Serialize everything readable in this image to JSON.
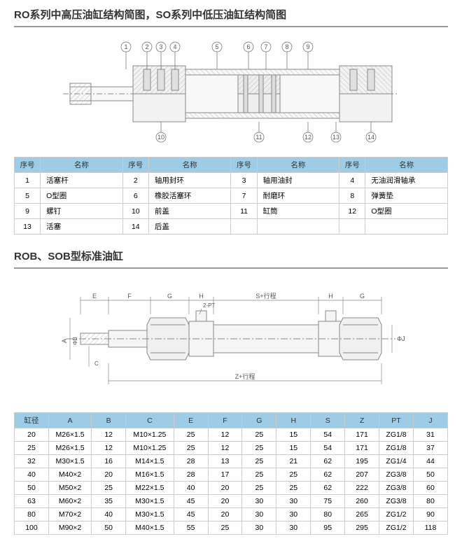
{
  "section1": {
    "title": "RO系列中高压油缸结构简图，SO系列中低压油缸结构简图",
    "callouts": [
      1,
      2,
      3,
      4,
      5,
      6,
      7,
      8,
      9,
      10,
      11,
      12,
      13,
      14
    ],
    "table": {
      "headers": [
        "序号",
        "名称",
        "序号",
        "名称",
        "序号",
        "名称",
        "序号",
        "名称"
      ],
      "rows": [
        [
          "1",
          "活塞杆",
          "2",
          "轴用封环",
          "3",
          "轴用油封",
          "4",
          "无油润滑轴承"
        ],
        [
          "5",
          "O型圈",
          "6",
          "橡胶活塞环",
          "7",
          "耐磨环",
          "8",
          "弹簧垫"
        ],
        [
          "9",
          "螺钉",
          "10",
          "前盖",
          "11",
          "缸筒",
          "12",
          "O型圈"
        ],
        [
          "13",
          "活塞",
          "14",
          "后盖",
          "",
          "",
          "",
          ""
        ]
      ]
    }
  },
  "section2": {
    "title": "ROB、SOB型标准油缸",
    "dims": {
      "top": [
        "E",
        "F",
        "G",
        "H",
        "S+行程",
        "H",
        "G"
      ],
      "left": [
        "A",
        "ΦB",
        "C"
      ],
      "right": "ΦJ",
      "bottom": "Z+行程",
      "port": "2-PT",
      "m_text": "M"
    },
    "table": {
      "headers": [
        "缸径",
        "A",
        "B",
        "C",
        "E",
        "F",
        "G",
        "H",
        "S",
        "Z",
        "PT",
        "J"
      ],
      "rows": [
        [
          "20",
          "M26×1.5",
          "12",
          "M10×1.25",
          "25",
          "12",
          "25",
          "15",
          "54",
          "171",
          "ZG1/8",
          "31"
        ],
        [
          "25",
          "M26×1.5",
          "12",
          "M10×1.25",
          "25",
          "12",
          "25",
          "15",
          "54",
          "171",
          "ZG1/8",
          "37"
        ],
        [
          "32",
          "M30×1.5",
          "16",
          "M14×1.5",
          "28",
          "13",
          "25",
          "21",
          "62",
          "195",
          "ZG1/4",
          "44"
        ],
        [
          "40",
          "M40×2",
          "20",
          "M16×1.5",
          "28",
          "17",
          "25",
          "25",
          "62",
          "207",
          "ZG3/8",
          "50"
        ],
        [
          "50",
          "M50×2",
          "25",
          "M22×1.5",
          "40",
          "20",
          "25",
          "25",
          "62",
          "222",
          "ZG3/8",
          "60"
        ],
        [
          "63",
          "M60×2",
          "35",
          "M30×1.5",
          "45",
          "20",
          "30",
          "30",
          "75",
          "260",
          "ZG3/8",
          "80"
        ],
        [
          "80",
          "M70×2",
          "40",
          "M30×1.5",
          "45",
          "20",
          "30",
          "30",
          "80",
          "265",
          "ZG1/2",
          "90"
        ],
        [
          "100",
          "M90×2",
          "50",
          "M40×1.5",
          "55",
          "25",
          "30",
          "30",
          "95",
          "295",
          "ZG1/2",
          "118"
        ]
      ]
    }
  },
  "style": {
    "diagram_stroke": "#888888",
    "diagram_fill_light": "#f5f5f5",
    "diagram_fill_med": "#e8e8e8",
    "diagram_hatch": "#cccccc",
    "callout_stroke": "#666666",
    "text_color": "#555555",
    "header_bg": "#9ecce6",
    "border": "#cccccc"
  }
}
